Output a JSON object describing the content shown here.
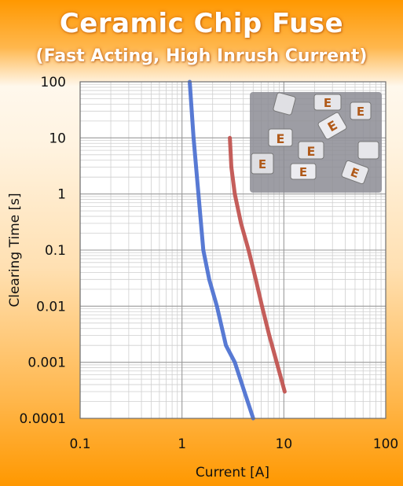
{
  "chart_data": {
    "type": "line",
    "title": "Ceramic Chip Fuse",
    "subtitle": "(Fast Acting, High Inrush Current)",
    "xlabel": "Current [A]",
    "ylabel": "Clearing Time [s]",
    "xscale": "log",
    "yscale": "log",
    "xlim": [
      0.1,
      100
    ],
    "ylim": [
      0.0001,
      100
    ],
    "x_ticks": [
      "0.1",
      "1",
      "10",
      "100"
    ],
    "y_ticks": [
      "100",
      "10",
      "1",
      "0.1",
      "0.01",
      "0.001",
      "0.0001"
    ],
    "grid": true,
    "legend": "none",
    "series": [
      {
        "color": "#4a6fd0",
        "x": [
          1.19,
          1.3,
          1.45,
          1.62,
          1.85,
          2.2,
          2.7,
          3.3,
          4.1,
          5.0
        ],
        "y": [
          100,
          10,
          1,
          0.1,
          0.03,
          0.01,
          0.002,
          0.001,
          0.0003,
          0.0001
        ]
      },
      {
        "color": "#c0504d",
        "x": [
          2.95,
          3.05,
          3.3,
          3.8,
          4.5,
          5.3,
          6.1,
          7.2,
          8.5,
          10.2
        ],
        "y": [
          10,
          3,
          1,
          0.3,
          0.1,
          0.03,
          0.01,
          0.003,
          0.001,
          0.0003
        ]
      }
    ]
  },
  "photo": {
    "label": "ceramic-chip-fuse-photo",
    "marking": "E"
  }
}
